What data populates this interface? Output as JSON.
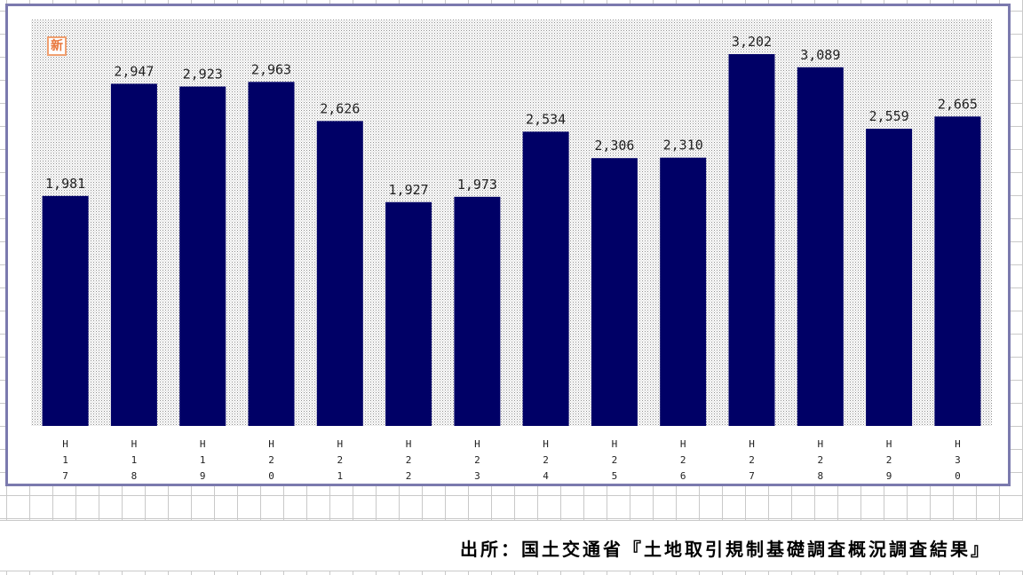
{
  "badge": {
    "label": "新"
  },
  "source": {
    "text": "出所：国土交通省『土地取引規制基礎調査概況調査結果』"
  },
  "colors": {
    "bar": "#000066",
    "frame_border": "#7b7aae",
    "plot_pattern": "#9a9a9a",
    "badge": "#e8763a"
  },
  "chart_data": {
    "type": "bar",
    "title": "",
    "xlabel": "",
    "ylabel": "",
    "categories": [
      "H17",
      "H18",
      "H19",
      "H20",
      "H21",
      "H22",
      "H23",
      "H24",
      "H25",
      "H26",
      "H27",
      "H28",
      "H29",
      "H30"
    ],
    "values": [
      1981,
      2947,
      2923,
      2963,
      2626,
      1927,
      1973,
      2534,
      2306,
      2310,
      3202,
      3089,
      2559,
      2665
    ],
    "value_labels": [
      "1,981",
      "2,947",
      "2,923",
      "2,963",
      "2,626",
      "1,927",
      "1,973",
      "2,534",
      "2,306",
      "2,310",
      "3,202",
      "3,089",
      "2,559",
      "2,665"
    ],
    "ylim": [
      0,
      3500
    ],
    "grid": false,
    "legend": "none"
  }
}
